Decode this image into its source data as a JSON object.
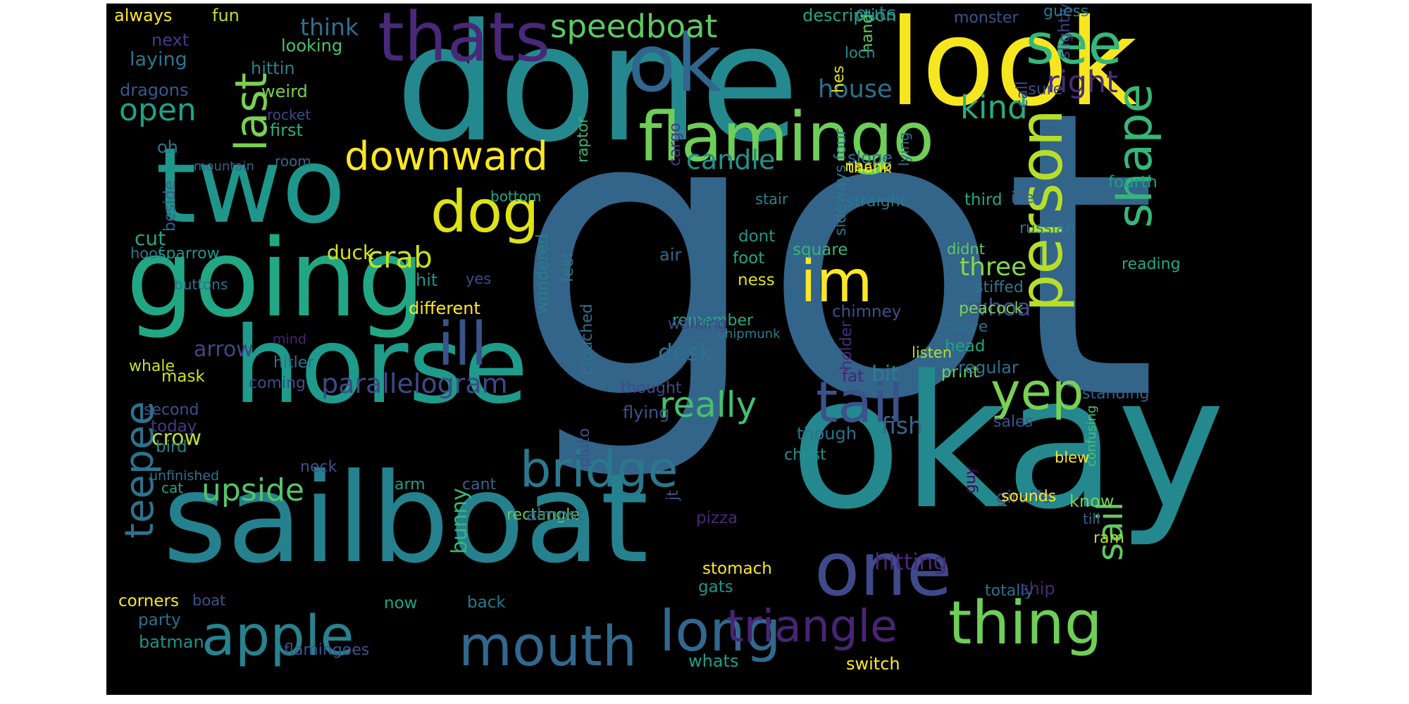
{
  "canvas": {
    "background": "#000000",
    "page_background": "#ffffff"
  },
  "words": [
    {
      "text": "got",
      "color": "#33648a",
      "rotated": false
    },
    {
      "text": "okay",
      "color": "#23898e",
      "rotated": false
    },
    {
      "text": "done",
      "color": "#23898e",
      "rotated": false
    },
    {
      "text": "sailboat",
      "color": "#26818e",
      "rotated": false
    },
    {
      "text": "look",
      "color": "#f6e620",
      "rotated": false
    },
    {
      "text": "horse",
      "color": "#1e9b8a",
      "rotated": false
    },
    {
      "text": "two",
      "color": "#1f968b",
      "rotated": false
    },
    {
      "text": "going",
      "color": "#22a785",
      "rotated": false
    },
    {
      "text": "one",
      "color": "#3e4a89",
      "rotated": false
    },
    {
      "text": "ok",
      "color": "#30678e",
      "rotated": false
    },
    {
      "text": "flamingo",
      "color": "#6ece58",
      "rotated": false
    },
    {
      "text": "thats",
      "color": "#482878",
      "rotated": false
    },
    {
      "text": "person",
      "color": "#b5de2b",
      "rotated": true
    },
    {
      "text": "see",
      "color": "#35b779",
      "rotated": false
    },
    {
      "text": "tail",
      "color": "#3b528b",
      "rotated": false
    },
    {
      "text": "thing",
      "color": "#6ece58",
      "rotated": false
    },
    {
      "text": "apple",
      "color": "#26828e",
      "rotated": false
    },
    {
      "text": "mouth",
      "color": "#31688e",
      "rotated": false
    },
    {
      "text": "long",
      "color": "#31688e",
      "rotated": false
    },
    {
      "text": "triangle",
      "color": "#482475",
      "rotated": false
    },
    {
      "text": "ill",
      "color": "#3b528b",
      "rotated": false
    },
    {
      "text": "im",
      "color": "#fde725",
      "rotated": false
    },
    {
      "text": "dog",
      "color": "#dde318",
      "rotated": false
    },
    {
      "text": "bridge",
      "color": "#2a788e",
      "rotated": false
    },
    {
      "text": "shape",
      "color": "#35b779",
      "rotated": true
    },
    {
      "text": "yep",
      "color": "#7ad151",
      "rotated": false
    },
    {
      "text": "last",
      "color": "#7ad151",
      "rotated": true
    },
    {
      "text": "teepee",
      "color": "#2c728e",
      "rotated": true
    },
    {
      "text": "downward",
      "color": "#fde725",
      "rotated": false
    },
    {
      "text": "speedboat",
      "color": "#5ec962",
      "rotated": false
    },
    {
      "text": "really",
      "color": "#44bf70",
      "rotated": false
    },
    {
      "text": "sail",
      "color": "#5ec962",
      "rotated": true
    },
    {
      "text": "upside",
      "color": "#54c568",
      "rotated": false
    },
    {
      "text": "kind",
      "color": "#29af7f",
      "rotated": false
    },
    {
      "text": "open",
      "color": "#1fa188",
      "rotated": false
    },
    {
      "text": "right",
      "color": "#472d7b",
      "rotated": false
    },
    {
      "text": "crab",
      "color": "#c8e020",
      "rotated": false
    },
    {
      "text": "parallelogram",
      "color": "#3e4989",
      "rotated": false
    },
    {
      "text": "candle",
      "color": "#21918c",
      "rotated": false
    },
    {
      "text": "three",
      "color": "#86d549",
      "rotated": false
    },
    {
      "text": "whoa",
      "color": "#3e4a89",
      "rotated": false
    },
    {
      "text": "house",
      "color": "#2c718e",
      "rotated": false
    },
    {
      "text": "think",
      "color": "#2e6e8e",
      "rotated": false
    },
    {
      "text": "desk",
      "color": "#2c718e",
      "rotated": false
    },
    {
      "text": "fish",
      "color": "#31688e",
      "rotated": false
    },
    {
      "text": "arrow",
      "color": "#414487",
      "rotated": false
    },
    {
      "text": "bit",
      "color": "#277f8e",
      "rotated": false
    },
    {
      "text": "crow",
      "color": "#bddf26",
      "rotated": false
    },
    {
      "text": "duck",
      "color": "#d8e219",
      "rotated": false
    },
    {
      "text": "outs",
      "color": "#2a788e",
      "rotated": false
    },
    {
      "text": "cut",
      "color": "#22a884",
      "rotated": false
    },
    {
      "text": "laying",
      "color": "#2a768e",
      "rotated": false
    },
    {
      "text": "hitting",
      "color": "#482878",
      "rotated": false
    },
    {
      "text": "bunny",
      "color": "#38b977",
      "rotated": true
    },
    {
      "text": "description",
      "color": "#20a486",
      "rotated": false
    },
    {
      "text": "always",
      "color": "#fde725",
      "rotated": false
    },
    {
      "text": "fun",
      "color": "#bddf26",
      "rotated": false
    },
    {
      "text": "next",
      "color": "#443a83",
      "rotated": false
    },
    {
      "text": "looking",
      "color": "#4ac16d",
      "rotated": false
    },
    {
      "text": "hittin",
      "color": "#26828e",
      "rotated": false
    },
    {
      "text": "dragons",
      "color": "#38598c",
      "rotated": false
    },
    {
      "text": "weird",
      "color": "#7ad151",
      "rotated": false
    },
    {
      "text": "rocket",
      "color": "#3e4a89",
      "rotated": false
    },
    {
      "text": "first",
      "color": "#29af7f",
      "rotated": false
    },
    {
      "text": "oh",
      "color": "#2a788e",
      "rotated": false
    },
    {
      "text": "mountain",
      "color": "#33638d",
      "rotated": false
    },
    {
      "text": "room",
      "color": "#31688e",
      "rotated": false
    },
    {
      "text": "bottom",
      "color": "#22a884",
      "rotated": false
    },
    {
      "text": "hoof",
      "color": "#2a788e",
      "rotated": false
    },
    {
      "text": "sparrow",
      "color": "#1f968b",
      "rotated": false
    },
    {
      "text": "buttons",
      "color": "#2c728e",
      "rotated": false
    },
    {
      "text": "hit",
      "color": "#1f968b",
      "rotated": false
    },
    {
      "text": "yes",
      "color": "#3e4a89",
      "rotated": false
    },
    {
      "text": "different",
      "color": "#fde725",
      "rotated": false
    },
    {
      "text": "mind",
      "color": "#482475",
      "rotated": false
    },
    {
      "text": "hitler",
      "color": "#2c728e",
      "rotated": false
    },
    {
      "text": "whale",
      "color": "#c8e020",
      "rotated": false
    },
    {
      "text": "mask",
      "color": "#cde11d",
      "rotated": false
    },
    {
      "text": "coming",
      "color": "#3e4a89",
      "rotated": false
    },
    {
      "text": "second",
      "color": "#3b528b",
      "rotated": false
    },
    {
      "text": "today",
      "color": "#443983",
      "rotated": false
    },
    {
      "text": "bird",
      "color": "#25848e",
      "rotated": false
    },
    {
      "text": "unfinished",
      "color": "#2c728e",
      "rotated": false
    },
    {
      "text": "neck",
      "color": "#3b528b",
      "rotated": false
    },
    {
      "text": "arm",
      "color": "#1f9e89",
      "rotated": false
    },
    {
      "text": "cant",
      "color": "#33638d",
      "rotated": false
    },
    {
      "text": "cat",
      "color": "#20a386",
      "rotated": false
    },
    {
      "text": "rectangle",
      "color": "#5ec962",
      "rotated": false
    },
    {
      "text": "almost",
      "color": "#31688e",
      "rotated": false
    },
    {
      "text": "corners",
      "color": "#fde725",
      "rotated": false
    },
    {
      "text": "boat",
      "color": "#3b528b",
      "rotated": false
    },
    {
      "text": "party",
      "color": "#2c718e",
      "rotated": false
    },
    {
      "text": "now",
      "color": "#1fa188",
      "rotated": false
    },
    {
      "text": "back",
      "color": "#2a788e",
      "rotated": false
    },
    {
      "text": "batman",
      "color": "#21918c",
      "rotated": false
    },
    {
      "text": "flamingoes",
      "color": "#3b528b",
      "rotated": false
    },
    {
      "text": "whats",
      "color": "#1f9e89",
      "rotated": false
    },
    {
      "text": "switch",
      "color": "#fde725",
      "rotated": false
    },
    {
      "text": "stomach",
      "color": "#fde725",
      "rotated": false
    },
    {
      "text": "gats",
      "color": "#1f968b",
      "rotated": false
    },
    {
      "text": "pizza",
      "color": "#482878",
      "rotated": false
    },
    {
      "text": "dont",
      "color": "#1f968b",
      "rotated": false
    },
    {
      "text": "foot",
      "color": "#22a884",
      "rotated": false
    },
    {
      "text": "ness",
      "color": "#dde318",
      "rotated": false
    },
    {
      "text": "air",
      "color": "#31688e",
      "rotated": false
    },
    {
      "text": "remember",
      "color": "#22a884",
      "rotated": false
    },
    {
      "text": "chipmunk",
      "color": "#287c8e",
      "rotated": false
    },
    {
      "text": "thought",
      "color": "#3e4a89",
      "rotated": false
    },
    {
      "text": "flying",
      "color": "#3b528b",
      "rotated": false
    },
    {
      "text": "walking",
      "color": "#414487",
      "rotated": false
    },
    {
      "text": "thank",
      "color": "#fde725",
      "rotated": false
    },
    {
      "text": "stair",
      "color": "#26828e",
      "rotated": false
    },
    {
      "text": "though",
      "color": "#2c718e",
      "rotated": false
    },
    {
      "text": "chest",
      "color": "#21918c",
      "rotated": false
    },
    {
      "text": "square",
      "color": "#35b779",
      "rotated": false
    },
    {
      "text": "didnt",
      "color": "#5ec962",
      "rotated": false
    },
    {
      "text": "stiffed",
      "color": "#2a788e",
      "rotated": false
    },
    {
      "text": "peacock",
      "color": "#7ad151",
      "rotated": false
    },
    {
      "text": "chimney",
      "color": "#3b528b",
      "rotated": false
    },
    {
      "text": "move",
      "color": "#2c718e",
      "rotated": false
    },
    {
      "text": "head",
      "color": "#20a386",
      "rotated": false
    },
    {
      "text": "print",
      "color": "#6ece58",
      "rotated": false
    },
    {
      "text": "regular",
      "color": "#2c728e",
      "rotated": false
    },
    {
      "text": "fat",
      "color": "#482475",
      "rotated": false
    },
    {
      "text": "listen",
      "color": "#b5de2b",
      "rotated": false
    },
    {
      "text": "sales",
      "color": "#3b528b",
      "rotated": false
    },
    {
      "text": "standing",
      "color": "#33638d",
      "rotated": false
    },
    {
      "text": "guy",
      "color": "#440154",
      "rotated": true
    },
    {
      "text": "know",
      "color": "#7ad151",
      "rotated": false
    },
    {
      "text": "till",
      "color": "#31688e",
      "rotated": false
    },
    {
      "text": "ram",
      "color": "#b5de2b",
      "rotated": false
    },
    {
      "text": "blew",
      "color": "#fde725",
      "rotated": false
    },
    {
      "text": "giraffe",
      "color": "#3e4a89",
      "rotated": false
    },
    {
      "text": "sounds",
      "color": "#fde725",
      "rotated": false
    },
    {
      "text": "totally",
      "color": "#2c728e",
      "rotated": false
    },
    {
      "text": "ship",
      "color": "#482878",
      "rotated": false
    },
    {
      "text": "confusing",
      "color": "#4ac16d",
      "rotated": true
    },
    {
      "text": "reading",
      "color": "#22a884",
      "rotated": false
    },
    {
      "text": "fourth",
      "color": "#1f9e89",
      "rotated": false
    },
    {
      "text": "nacho",
      "color": "#d8e219",
      "rotated": false
    },
    {
      "text": "slope",
      "color": "#2c728e",
      "rotated": false
    },
    {
      "text": "straight",
      "color": "#2a788e",
      "rotated": false
    },
    {
      "text": "third",
      "color": "#22a884",
      "rotated": false
    },
    {
      "text": "russian",
      "color": "#2a768e",
      "rotated": false
    },
    {
      "text": "ive",
      "color": "#31688e",
      "rotated": false
    },
    {
      "text": "call",
      "color": "#3e4a89",
      "rotated": true
    },
    {
      "text": "slightly",
      "color": "#414487",
      "rotated": true
    },
    {
      "text": "sure",
      "color": "#3e4a89",
      "rotated": false
    },
    {
      "text": "monster",
      "color": "#3b528b",
      "rotated": false
    },
    {
      "text": "guess",
      "color": "#2a788e",
      "rotated": false
    },
    {
      "text": "hand",
      "color": "#5ec962",
      "rotated": true
    },
    {
      "text": "loch",
      "color": "#21918c",
      "rotated": false
    },
    {
      "text": "hes",
      "color": "#dde318",
      "rotated": true
    },
    {
      "text": "sideways four",
      "color": "#2a788e",
      "rotated": true
    },
    {
      "text": "holder",
      "color": "#472c7a",
      "rotated": true
    },
    {
      "text": "crouched",
      "color": "#2c718e",
      "rotated": true
    },
    {
      "text": "wondered",
      "color": "#287d8e",
      "rotated": true
    },
    {
      "text": "feet",
      "color": "#2a788e",
      "rotated": true
    },
    {
      "text": "raptor",
      "color": "#38b977",
      "rotated": true
    },
    {
      "text": "pluto",
      "color": "#3b528b",
      "rotated": true
    },
    {
      "text": "jt",
      "color": "#3b528b",
      "rotated": true
    },
    {
      "text": "cargo",
      "color": "#443983",
      "rotated": true
    },
    {
      "text": "lying",
      "color": "#2c718e",
      "rotated": true
    },
    {
      "text": "beside",
      "color": "#33638d",
      "rotated": true
    }
  ]
}
